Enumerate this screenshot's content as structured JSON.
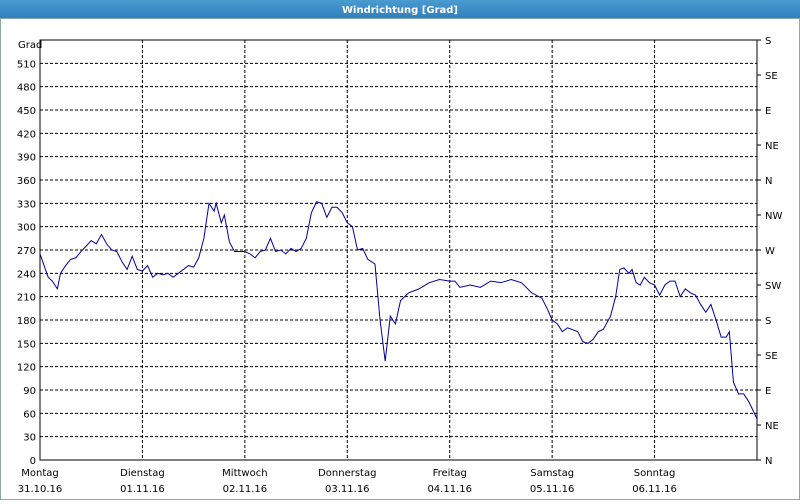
{
  "chart_data": {
    "type": "line",
    "title": "Windrichtung [Grad]",
    "ylabel": "Grad",
    "xlim": [
      0,
      7
    ],
    "xticks": [
      {
        "value": 0,
        "label": [
          "Montag",
          "31.10.16"
        ]
      },
      {
        "value": 1,
        "label": [
          "Dienstag",
          "01.11.16"
        ]
      },
      {
        "value": 2,
        "label": [
          "Mittwoch",
          "02.11.16"
        ]
      },
      {
        "value": 3,
        "label": [
          "Donnerstag",
          "03.11.16"
        ]
      },
      {
        "value": 4,
        "label": [
          "Freitag",
          "04.11.16"
        ]
      },
      {
        "value": 5,
        "label": [
          "Samstag",
          "05.11.16"
        ]
      },
      {
        "value": 6,
        "label": [
          "Sonntag",
          "06.11.16"
        ]
      }
    ],
    "ylim": [
      0,
      540
    ],
    "yticks": [
      0,
      30,
      60,
      90,
      120,
      150,
      180,
      210,
      240,
      270,
      300,
      330,
      360,
      390,
      420,
      450,
      480,
      510
    ],
    "y2lim": [
      0,
      540
    ],
    "y2ticks": [
      {
        "value": 0,
        "label": "N"
      },
      {
        "value": 45,
        "label": "NE"
      },
      {
        "value": 90,
        "label": "E"
      },
      {
        "value": 135,
        "label": "SE"
      },
      {
        "value": 180,
        "label": "S"
      },
      {
        "value": 225,
        "label": "SW"
      },
      {
        "value": 270,
        "label": "W"
      },
      {
        "value": 315,
        "label": "NW"
      },
      {
        "value": 360,
        "label": "N"
      },
      {
        "value": 405,
        "label": "NE"
      },
      {
        "value": 450,
        "label": "E"
      },
      {
        "value": 495,
        "label": "SE"
      },
      {
        "value": 540,
        "label": "S"
      }
    ],
    "grid": true,
    "series": [
      {
        "color": "#0000a0",
        "x": [
          0,
          0.04,
          0.08,
          0.12,
          0.17,
          0.2,
          0.25,
          0.3,
          0.35,
          0.4,
          0.45,
          0.5,
          0.55,
          0.6,
          0.65,
          0.7,
          0.75,
          0.8,
          0.85,
          0.9,
          0.95,
          1.0,
          1.05,
          1.1,
          1.15,
          1.2,
          1.25,
          1.3,
          1.4,
          1.45,
          1.5,
          1.55,
          1.6,
          1.65,
          1.7,
          1.72,
          1.77,
          1.8,
          1.85,
          1.9,
          2.0,
          2.05,
          2.1,
          2.15,
          2.2,
          2.25,
          2.3,
          2.35,
          2.4,
          2.45,
          2.5,
          2.55,
          2.6,
          2.65,
          2.7,
          2.75,
          2.8,
          2.85,
          2.9,
          2.95,
          3.0,
          3.05,
          3.1,
          3.15,
          3.2,
          3.27,
          3.32,
          3.37,
          3.42,
          3.47,
          3.52,
          3.6,
          3.7,
          3.8,
          3.9,
          4.0,
          4.05,
          4.1,
          4.2,
          4.3,
          4.4,
          4.5,
          4.6,
          4.7,
          4.8,
          4.9,
          4.95,
          5.0,
          5.05,
          5.1,
          5.15,
          5.25,
          5.3,
          5.35,
          5.4,
          5.45,
          5.5,
          5.57,
          5.62,
          5.66,
          5.7,
          5.75,
          5.78,
          5.82,
          5.86,
          5.9,
          5.95,
          6.0,
          6.05,
          6.1,
          6.15,
          6.2,
          6.25,
          6.3,
          6.35,
          6.4,
          6.45,
          6.5,
          6.55,
          6.6,
          6.65,
          6.7,
          6.73,
          6.77,
          6.82,
          6.87,
          6.92,
          7.0
        ],
        "values": [
          265,
          250,
          235,
          230,
          220,
          240,
          250,
          258,
          260,
          268,
          275,
          282,
          278,
          290,
          278,
          270,
          268,
          255,
          245,
          262,
          245,
          243,
          250,
          235,
          240,
          238,
          240,
          235,
          245,
          250,
          248,
          260,
          285,
          330,
          320,
          330,
          305,
          315,
          280,
          268,
          268,
          265,
          260,
          268,
          270,
          285,
          268,
          270,
          265,
          272,
          268,
          272,
          285,
          318,
          332,
          330,
          312,
          325,
          325,
          318,
          305,
          300,
          270,
          272,
          258,
          252,
          180,
          127,
          185,
          175,
          205,
          215,
          220,
          228,
          232,
          230,
          230,
          222,
          225,
          222,
          230,
          228,
          232,
          228,
          215,
          208,
          195,
          180,
          175,
          165,
          170,
          165,
          152,
          150,
          155,
          165,
          168,
          185,
          210,
          245,
          247,
          240,
          245,
          228,
          225,
          235,
          228,
          225,
          212,
          225,
          230,
          230,
          210,
          220,
          215,
          212,
          200,
          190,
          200,
          180,
          158,
          158,
          165,
          100,
          85,
          85,
          75,
          53
        ]
      }
    ]
  }
}
